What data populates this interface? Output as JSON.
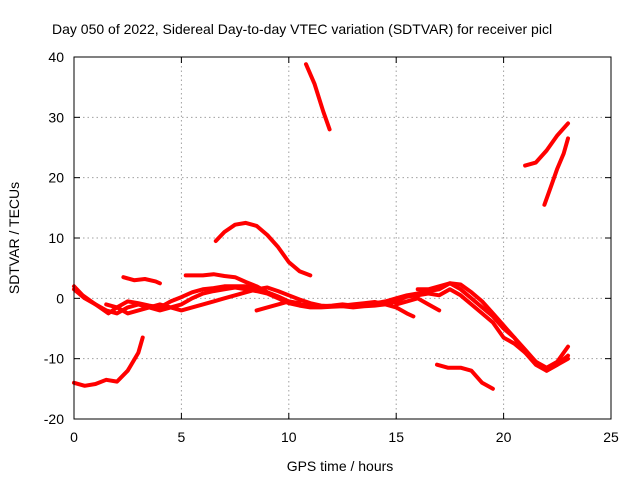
{
  "chart_data": {
    "type": "line",
    "title": "Day 050 of 2022, Sidereal Day-to-day VTEC variation (SDTVAR) for receiver picl",
    "xlabel": "GPS time / hours",
    "ylabel": "SDTVAR / TECUs",
    "xlim": [
      0,
      25
    ],
    "ylim": [
      -20,
      40
    ],
    "xticks": [
      0,
      5,
      10,
      15,
      20,
      25
    ],
    "yticks": [
      -20,
      -10,
      0,
      10,
      20,
      30,
      40
    ],
    "grid": true,
    "color": "#ff0000",
    "series": [
      {
        "name": "s1",
        "points": [
          [
            0,
            -14
          ],
          [
            0.5,
            -14.5
          ],
          [
            1,
            -14.2
          ],
          [
            1.5,
            -13.5
          ],
          [
            2,
            -13.8
          ],
          [
            2.5,
            -12
          ],
          [
            3,
            -9
          ],
          [
            3.2,
            -6.5
          ]
        ]
      },
      {
        "name": "s2",
        "points": [
          [
            0,
            2
          ],
          [
            0.4,
            0.5
          ],
          [
            0.8,
            -0.5
          ],
          [
            1.2,
            -1.5
          ],
          [
            1.6,
            -2.5
          ],
          [
            2,
            -1.5
          ],
          [
            2.5,
            -0.5
          ],
          [
            3,
            -0.8
          ],
          [
            3.5,
            -1.2
          ],
          [
            4,
            -1.5
          ],
          [
            4.5,
            -0.5
          ],
          [
            5,
            0.2
          ],
          [
            5.5,
            1
          ],
          [
            6,
            1.5
          ],
          [
            6.5,
            1.7
          ],
          [
            7,
            2
          ],
          [
            7.5,
            2
          ],
          [
            8,
            2
          ],
          [
            8.5,
            1.6
          ],
          [
            9,
            1
          ],
          [
            9.5,
            0.3
          ],
          [
            10,
            -0.5
          ],
          [
            10.5,
            -1
          ],
          [
            11,
            -1.2
          ],
          [
            11.5,
            -1.3
          ],
          [
            12,
            -1.2
          ],
          [
            12.5,
            -1
          ],
          [
            13,
            -1.2
          ],
          [
            13.5,
            -1
          ],
          [
            14,
            -0.8
          ],
          [
            14.5,
            -0.5
          ],
          [
            15,
            0
          ],
          [
            15.5,
            0.5
          ],
          [
            16,
            0.8
          ],
          [
            16.5,
            1.2
          ],
          [
            17,
            1.5
          ],
          [
            17.5,
            2.5
          ],
          [
            18,
            1.5
          ],
          [
            18.5,
            0
          ],
          [
            19,
            -1.5
          ],
          [
            19.5,
            -3
          ],
          [
            20,
            -5
          ],
          [
            20.5,
            -6.5
          ],
          [
            21,
            -8.5
          ],
          [
            21.5,
            -10.5
          ],
          [
            22,
            -11.5
          ],
          [
            22.5,
            -10.5
          ],
          [
            23,
            -8
          ]
        ]
      },
      {
        "name": "s3",
        "points": [
          [
            0,
            1.5
          ],
          [
            0.5,
            0
          ],
          [
            1,
            -1
          ],
          [
            1.5,
            -2
          ],
          [
            2,
            -2.5
          ],
          [
            2.5,
            -1.5
          ],
          [
            3,
            -1
          ],
          [
            3.5,
            -1.5
          ],
          [
            4,
            -2
          ],
          [
            4.5,
            -1.5
          ],
          [
            5,
            -1
          ],
          [
            5.5,
            0
          ],
          [
            6,
            0.8
          ],
          [
            6.5,
            1.2
          ],
          [
            7,
            1.5
          ],
          [
            7.5,
            1.8
          ],
          [
            8,
            1.5
          ],
          [
            8.5,
            1.2
          ],
          [
            9,
            0.8
          ],
          [
            9.5,
            0
          ],
          [
            10,
            -0.8
          ],
          [
            10.5,
            -1.2
          ],
          [
            11,
            -1.5
          ],
          [
            11.5,
            -1.5
          ],
          [
            12,
            -1.4
          ],
          [
            12.5,
            -1.3
          ],
          [
            13,
            -1.5
          ],
          [
            13.5,
            -1.3
          ],
          [
            14,
            -1.2
          ],
          [
            14.5,
            -1
          ],
          [
            15,
            -0.5
          ],
          [
            15.5,
            0.3
          ],
          [
            16,
            0.5
          ],
          [
            16.5,
            0.8
          ],
          [
            17,
            0.5
          ],
          [
            17.5,
            1.5
          ],
          [
            18,
            0.5
          ],
          [
            18.5,
            -1
          ],
          [
            19,
            -2.5
          ],
          [
            19.5,
            -4
          ],
          [
            20,
            -6.5
          ],
          [
            20.5,
            -7.5
          ],
          [
            21,
            -9
          ],
          [
            21.5,
            -11
          ],
          [
            22,
            -12
          ],
          [
            22.5,
            -11
          ],
          [
            23,
            -9.5
          ]
        ]
      },
      {
        "name": "s4",
        "points": [
          [
            1.5,
            -1
          ],
          [
            2,
            -1.5
          ],
          [
            2.5,
            -2.5
          ],
          [
            3,
            -2
          ],
          [
            3.5,
            -1.5
          ],
          [
            4,
            -1
          ],
          [
            4.5,
            -1.5
          ],
          [
            5,
            -2
          ],
          [
            5.5,
            -1.5
          ],
          [
            6,
            -1
          ],
          [
            6.5,
            -0.5
          ],
          [
            7,
            0
          ],
          [
            7.5,
            0.5
          ],
          [
            8,
            1
          ],
          [
            8.5,
            1.5
          ],
          [
            9,
            1.8
          ],
          [
            9.5,
            1.2
          ],
          [
            10,
            0.5
          ],
          [
            10.5,
            -0.2
          ],
          [
            11,
            -0.8
          ],
          [
            11.5,
            -1.2
          ],
          [
            12,
            -1.3
          ],
          [
            12.5,
            -1.2
          ],
          [
            13,
            -1
          ],
          [
            13.5,
            -0.8
          ],
          [
            14,
            -0.6
          ],
          [
            14.5,
            -1
          ],
          [
            15,
            -1.5
          ],
          [
            15.5,
            -2.5
          ],
          [
            15.8,
            -3
          ]
        ]
      },
      {
        "name": "s5",
        "points": [
          [
            2.3,
            3.5
          ],
          [
            2.8,
            3
          ],
          [
            3.3,
            3.2
          ],
          [
            3.8,
            2.8
          ],
          [
            4,
            2.5
          ]
        ]
      },
      {
        "name": "s6",
        "points": [
          [
            5.2,
            3.8
          ],
          [
            6,
            3.8
          ],
          [
            6.5,
            4
          ],
          [
            7,
            3.7
          ],
          [
            7.5,
            3.5
          ],
          [
            8,
            2.7
          ],
          [
            8.5,
            2
          ],
          [
            9,
            1
          ]
        ]
      },
      {
        "name": "s7",
        "points": [
          [
            6.6,
            9.5
          ],
          [
            7,
            11
          ],
          [
            7.5,
            12.2
          ],
          [
            8,
            12.5
          ],
          [
            8.5,
            12
          ],
          [
            9,
            10.5
          ],
          [
            9.5,
            8.5
          ],
          [
            10,
            6
          ],
          [
            10.5,
            4.5
          ],
          [
            11,
            3.8
          ]
        ]
      },
      {
        "name": "s8",
        "points": [
          [
            8.5,
            -2
          ],
          [
            9,
            -1.5
          ],
          [
            9.5,
            -1
          ],
          [
            10,
            -0.5
          ],
          [
            10.5,
            -0.8
          ]
        ]
      },
      {
        "name": "s9",
        "points": [
          [
            10.8,
            38.8
          ],
          [
            11.2,
            35.5
          ],
          [
            11.6,
            31
          ],
          [
            11.9,
            28
          ]
        ]
      },
      {
        "name": "s10",
        "points": [
          [
            15,
            -1
          ],
          [
            15.5,
            -0.5
          ],
          [
            16,
            0
          ],
          [
            16.5,
            -1
          ],
          [
            17,
            -2
          ]
        ]
      },
      {
        "name": "s11",
        "points": [
          [
            16,
            1.5
          ],
          [
            16.5,
            1.5
          ],
          [
            17,
            2
          ],
          [
            17.5,
            2.5
          ],
          [
            18,
            2.3
          ],
          [
            18.5,
            1
          ],
          [
            19,
            -0.5
          ],
          [
            19.5,
            -2.5
          ],
          [
            20,
            -4.5
          ],
          [
            20.5,
            -6.5
          ],
          [
            21,
            -9
          ],
          [
            21.5,
            -10.5
          ],
          [
            22,
            -12
          ],
          [
            22.5,
            -11
          ],
          [
            23,
            -10
          ]
        ]
      },
      {
        "name": "s12",
        "points": [
          [
            16.9,
            -11
          ],
          [
            17.4,
            -11.5
          ],
          [
            18,
            -11.5
          ],
          [
            18.5,
            -12
          ],
          [
            19,
            -14
          ],
          [
            19.5,
            -15
          ]
        ]
      },
      {
        "name": "s13",
        "points": [
          [
            21,
            22
          ],
          [
            21.5,
            22.5
          ],
          [
            22,
            24.5
          ],
          [
            22.5,
            27
          ],
          [
            23,
            29
          ]
        ]
      },
      {
        "name": "s14",
        "points": [
          [
            21.9,
            15.5
          ],
          [
            22.2,
            18.5
          ],
          [
            22.5,
            21.5
          ],
          [
            22.8,
            24
          ],
          [
            23,
            26.5
          ]
        ]
      }
    ]
  }
}
